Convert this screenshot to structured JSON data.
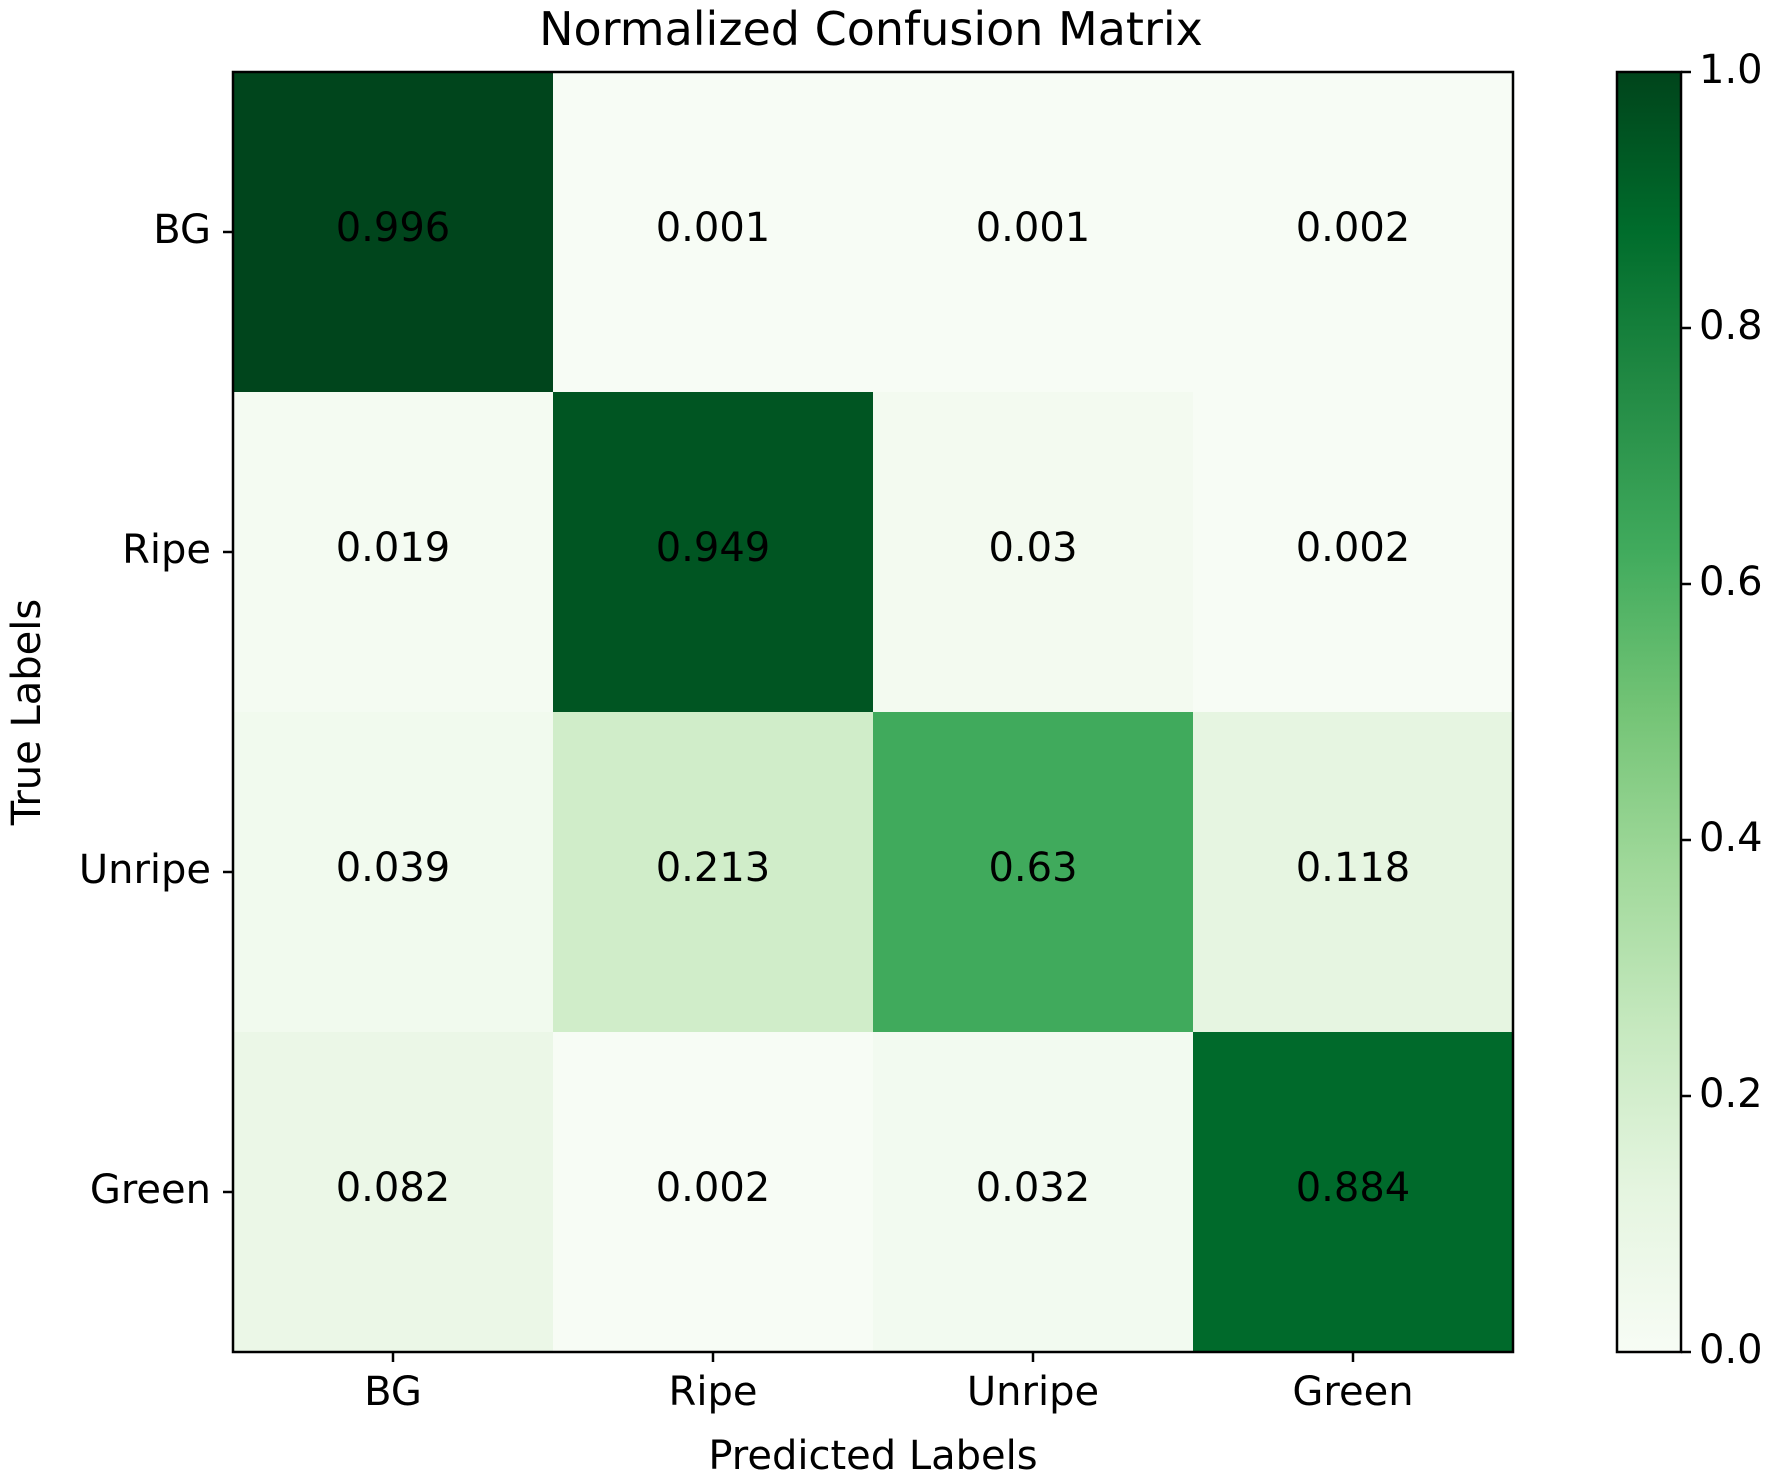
{
  "chart_data": {
    "type": "heatmap",
    "title": "Normalized Confusion Matrix",
    "xlabel": "Predicted Labels",
    "ylabel": "True Labels",
    "x_categories": [
      "BG",
      "Ripe",
      "Unripe",
      "Green"
    ],
    "y_categories": [
      "BG",
      "Ripe",
      "Unripe",
      "Green"
    ],
    "values": [
      [
        0.996,
        0.001,
        0.001,
        0.002
      ],
      [
        0.019,
        0.949,
        0.03,
        0.002
      ],
      [
        0.039,
        0.213,
        0.63,
        0.118
      ],
      [
        0.082,
        0.002,
        0.032,
        0.884
      ]
    ],
    "value_labels": [
      [
        "0.996",
        "0.001",
        "0.001",
        "0.002"
      ],
      [
        "0.019",
        "0.949",
        "0.03",
        "0.002"
      ],
      [
        "0.039",
        "0.213",
        "0.63",
        "0.118"
      ],
      [
        "0.082",
        "0.002",
        "0.032",
        "0.884"
      ]
    ],
    "colormap": "Greens",
    "colorbar": {
      "range": [
        0.0,
        1.0
      ],
      "ticks": [
        0.0,
        0.2,
        0.4,
        0.6,
        0.8,
        1.0
      ],
      "tick_labels": [
        "0.0",
        "0.2",
        "0.4",
        "0.6",
        "0.8",
        "1.0"
      ]
    },
    "colors": {
      "min": "#f7fcf5",
      "max": "#00441b"
    }
  }
}
